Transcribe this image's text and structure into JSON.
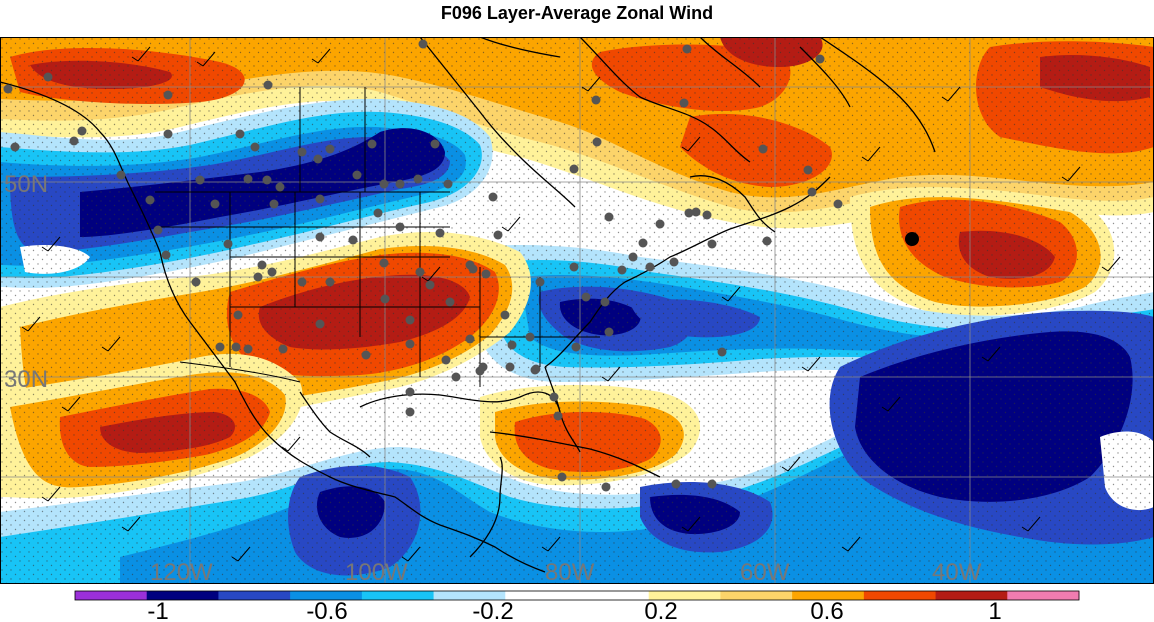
{
  "title": "F096 Layer-Average Zonal Wind",
  "map": {
    "lat_labels": [
      "50N",
      "30N"
    ],
    "lon_labels": [
      "120W",
      "100W",
      "80W",
      "60W",
      "40W"
    ]
  },
  "colorbar": {
    "colors": [
      "#9b30d9",
      "#00007f",
      "#2848c4",
      "#0a90e4",
      "#18c4f6",
      "#b4e4fc",
      "#ffffff",
      "#ffffff",
      "#fff29a",
      "#fcd46a",
      "#fca500",
      "#f04800",
      "#b41c14",
      "#f07cb0"
    ],
    "tick_labels": [
      "-1",
      "-0.6",
      "-0.2",
      "0.2",
      "0.6",
      "1"
    ]
  },
  "colors": {
    "dark_red": "#b41c14",
    "red_orange": "#f04800",
    "orange": "#fca500",
    "light_orange": "#fcd46a",
    "pale_yellow": "#fff29a",
    "light_blue": "#b4e4fc",
    "cyan": "#18c4f6",
    "sky_blue": "#0a90e4",
    "blue": "#2848c4",
    "navy": "#00007f",
    "station_dot": "#555555"
  }
}
